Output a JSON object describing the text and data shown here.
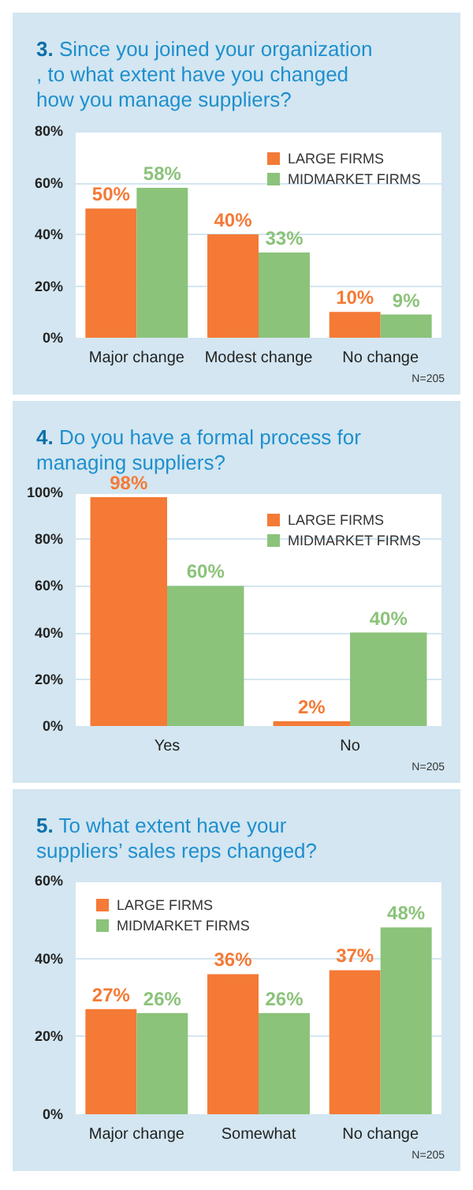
{
  "chart_data": [
    {
      "type": "bar",
      "title": "3. Since you joined your organization, to what extent have you changed how you manage suppliers?",
      "categories": [
        "Major change",
        "Modest change",
        "No change"
      ],
      "series": [
        {
          "name": "LARGE FIRMS",
          "color": "#f47a36",
          "values": [
            50,
            40,
            10
          ],
          "value_labels": [
            "50%",
            "40%",
            "10%"
          ]
        },
        {
          "name": "MIDMARKET FIRMS",
          "color": "#8bc37a",
          "values": [
            58,
            33,
            9
          ],
          "value_labels": [
            "58%",
            "33%",
            "9%"
          ]
        }
      ],
      "ylim": [
        0,
        80
      ],
      "yticks": [
        {
          "value": 0,
          "label": "0%"
        },
        {
          "value": 20,
          "label": "20%"
        },
        {
          "value": 40,
          "label": "40%"
        },
        {
          "value": 60,
          "label": "60%"
        },
        {
          "value": 80,
          "label": "80%"
        }
      ],
      "grid": "y",
      "legend": "top right",
      "annotations": [
        "N=205"
      ]
    },
    {
      "type": "bar",
      "title": "4. Do you have a formal process for managing suppliers?",
      "categories": [
        "Yes",
        "No"
      ],
      "series": [
        {
          "name": "LARGE FIRMS",
          "color": "#f47a36",
          "values": [
            98,
            2
          ],
          "value_labels": [
            "98%",
            "2%"
          ]
        },
        {
          "name": "MIDMARKET FIRMS",
          "color": "#8bc37a",
          "values": [
            60,
            40
          ],
          "value_labels": [
            "60%",
            "40%"
          ]
        }
      ],
      "ylim": [
        0,
        100
      ],
      "yticks": [
        {
          "value": 0,
          "label": "0%"
        },
        {
          "value": 20,
          "label": "20%"
        },
        {
          "value": 40,
          "label": "40%"
        },
        {
          "value": 60,
          "label": "60%"
        },
        {
          "value": 80,
          "label": "80%"
        },
        {
          "value": 100,
          "label": "100%"
        }
      ],
      "grid": "y",
      "legend": "top right",
      "annotations": [
        "N=205"
      ]
    },
    {
      "type": "bar",
      "title": "5. To what extent have your suppliers’ sales reps changed?",
      "categories": [
        "Major change",
        "Somewhat",
        "No change"
      ],
      "series": [
        {
          "name": "LARGE FIRMS",
          "color": "#f47a36",
          "values": [
            27,
            36,
            37
          ],
          "value_labels": [
            "27%",
            "36%",
            "37%"
          ]
        },
        {
          "name": "MIDMARKET FIRMS",
          "color": "#8bc37a",
          "values": [
            26,
            26,
            48
          ],
          "value_labels": [
            "26%",
            "26%",
            "48%"
          ]
        }
      ],
      "ylim": [
        0,
        60
      ],
      "yticks": [
        {
          "value": 0,
          "label": "0%"
        },
        {
          "value": 20,
          "label": "20%"
        },
        {
          "value": 40,
          "label": "40%"
        },
        {
          "value": 60,
          "label": "60%"
        }
      ],
      "grid": "y",
      "legend": "top left",
      "annotations": [
        "N=205"
      ]
    }
  ]
}
